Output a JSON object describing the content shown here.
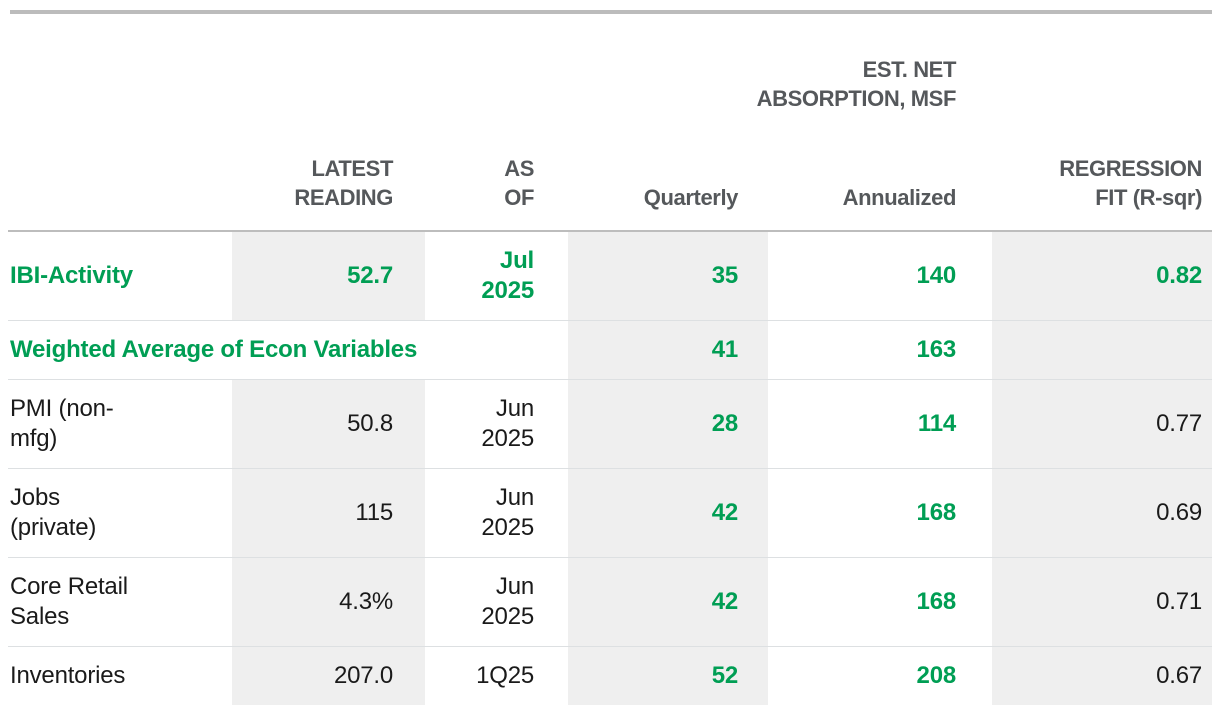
{
  "colors": {
    "accent_green": "#009e54",
    "shaded_column_bg": "#efefef",
    "header_text": "#55585b",
    "body_text": "#1a1a1a",
    "top_rule_gray": "#bcbcbc"
  },
  "table": {
    "headers": {
      "est_net_absorption_group": "EST. NET\nABSORPTION, MSF",
      "indicator": "",
      "latest_reading": "LATEST\nREADING",
      "as_of": "AS\nOF",
      "quarterly": "Quarterly",
      "annualized": "Annualized",
      "regression_fit": "REGRESSION\nFIT (R-sqr)"
    },
    "rows": [
      {
        "indicator": "IBI-Activity",
        "latest_reading": "52.7",
        "as_of": "Jul\n2025",
        "quarterly": "35",
        "annualized": "140",
        "regression_fit": "0.82",
        "highlight": true,
        "label_colspan": false
      },
      {
        "indicator": "Weighted Average of Econ Variables",
        "latest_reading": "",
        "as_of": "",
        "quarterly": "41",
        "annualized": "163",
        "regression_fit": "",
        "highlight": true,
        "label_colspan": true
      },
      {
        "indicator": "PMI (non-\nmfg)",
        "latest_reading": "50.8",
        "as_of": "Jun\n2025",
        "quarterly": "28",
        "annualized": "114",
        "regression_fit": "0.77",
        "highlight": false,
        "label_colspan": false
      },
      {
        "indicator": "Jobs\n(private)",
        "latest_reading": "115",
        "as_of": "Jun\n2025",
        "quarterly": "42",
        "annualized": "168",
        "regression_fit": "0.69",
        "highlight": false,
        "label_colspan": false
      },
      {
        "indicator": "Core Retail\nSales",
        "latest_reading": "4.3%",
        "as_of": "Jun\n2025",
        "quarterly": "42",
        "annualized": "168",
        "regression_fit": "0.71",
        "highlight": false,
        "label_colspan": false
      },
      {
        "indicator": "Inventories",
        "latest_reading": "207.0",
        "as_of": "1Q25",
        "quarterly": "52",
        "annualized": "208",
        "regression_fit": "0.67",
        "highlight": false,
        "label_colspan": false
      }
    ]
  },
  "chart_data": {
    "type": "table",
    "title": "",
    "column_groups": [
      {
        "label": "EST. NET ABSORPTION, MSF",
        "columns": [
          "Quarterly",
          "Annualized"
        ]
      }
    ],
    "columns": [
      "",
      "LATEST READING",
      "AS OF",
      "Quarterly",
      "Annualized",
      "REGRESSION FIT (R-sqr)"
    ],
    "rows": [
      [
        "IBI-Activity",
        "52.7",
        "Jul 2025",
        35,
        140,
        0.82
      ],
      [
        "Weighted Average of Econ Variables",
        "",
        "",
        41,
        163,
        ""
      ],
      [
        "PMI (non-mfg)",
        "50.8",
        "Jun 2025",
        28,
        114,
        0.77
      ],
      [
        "Jobs (private)",
        "115",
        "Jun 2025",
        42,
        168,
        0.69
      ],
      [
        "Core Retail Sales",
        "4.3%",
        "Jun 2025",
        42,
        168,
        0.71
      ],
      [
        "Inventories",
        "207.0",
        "1Q25",
        52,
        208,
        0.67
      ]
    ],
    "layout": {
      "shaded_columns": [
        "LATEST READING",
        "Quarterly",
        "REGRESSION FIT (R-sqr)"
      ],
      "green_bold_rows": [
        "IBI-Activity",
        "Weighted Average of Econ Variables"
      ],
      "green_bold_columns": [
        "Quarterly",
        "Annualized"
      ]
    }
  }
}
